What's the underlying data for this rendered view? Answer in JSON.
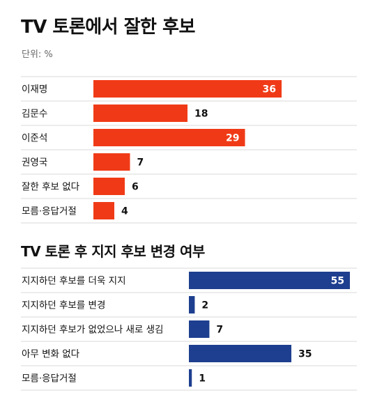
{
  "header": {
    "title": "TV 토론에서 잘한 후보",
    "unit": "단위: %"
  },
  "section2": {
    "title": "TV 토론 후 지지 후보 변경 여부"
  },
  "colors": {
    "chart1_bar": "#f03a17",
    "chart2_bar": "#1e3f8f",
    "row_divider": "#d9d9d9"
  },
  "chart_data": [
    {
      "type": "bar",
      "orientation": "horizontal",
      "title": "TV 토론에서 잘한 후보",
      "unit": "단위: %",
      "categories": [
        "이재명",
        "김문수",
        "이준석",
        "권영국",
        "잘한 후보 없다",
        "모름·응답거절"
      ],
      "values": [
        36,
        18,
        29,
        7,
        6,
        4
      ],
      "value_labels": [
        "36",
        "18",
        "29",
        "7",
        "6",
        "4"
      ],
      "color": "#f03a17",
      "grid": false,
      "legend": "none"
    },
    {
      "type": "bar",
      "orientation": "horizontal",
      "title": "TV 토론 후 지지 후보 변경 여부",
      "categories": [
        "지지하던 후보를 더욱 지지",
        "지지하던 후보를 변경",
        "지지하던 후보가 없었으나 새로 생김",
        "아무 변화 없다",
        "모름·응답거절"
      ],
      "values": [
        55,
        2,
        7,
        35,
        1
      ],
      "value_labels": [
        "55",
        "2",
        "7",
        "35",
        "1"
      ],
      "color": "#1e3f8f",
      "grid": false,
      "legend": "none"
    }
  ]
}
